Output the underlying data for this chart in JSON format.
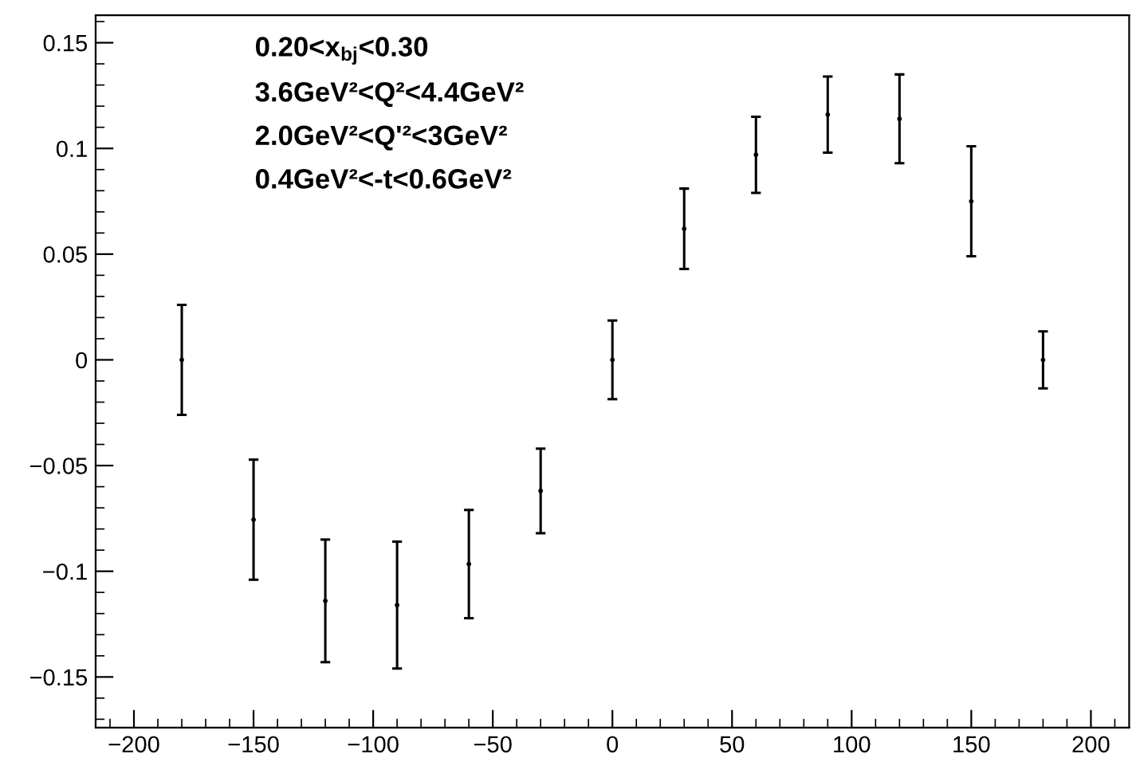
{
  "chart_data": {
    "type": "scatter",
    "marker": "none",
    "grid": false,
    "x": [
      -180,
      -150,
      -120,
      -90,
      -60,
      -30,
      0,
      30,
      60,
      90,
      120,
      150,
      180
    ],
    "series": [
      {
        "color": "#000000",
        "values": [
          0,
          -0.0756,
          -0.114,
          -0.116,
          -0.0966,
          -0.062,
          0,
          0.062,
          0.097,
          0.116,
          0.114,
          0.075,
          0
        ],
        "errors": [
          0.026,
          0.0284,
          0.029,
          0.03,
          0.0256,
          0.02,
          0.0186,
          0.019,
          0.018,
          0.018,
          0.021,
          0.026,
          0.0135
        ]
      }
    ],
    "xlim": [
      -216,
      216
    ],
    "ylim": [
      -0.174,
      0.163
    ],
    "xticks": [
      {
        "value": -200,
        "label": "−200"
      },
      {
        "value": -150,
        "label": "−150"
      },
      {
        "value": -100,
        "label": "−100"
      },
      {
        "value": -50,
        "label": "−50"
      },
      0,
      50,
      100,
      150,
      200
    ],
    "yticks": [
      {
        "value": -0.15,
        "label": "−0.15"
      },
      {
        "value": -0.1,
        "label": "−0.1"
      },
      {
        "value": -0.05,
        "label": "−0.05"
      },
      0,
      0.05,
      0.1,
      0.15
    ],
    "annotations": [
      "0.20<x$_{bj}$<0.30",
      "3.6GeV²<Q²<4.4GeV²",
      "2.0GeV²<Q'²<3GeV²",
      "0.4GeV²<-t<0.6GeV²"
    ]
  }
}
